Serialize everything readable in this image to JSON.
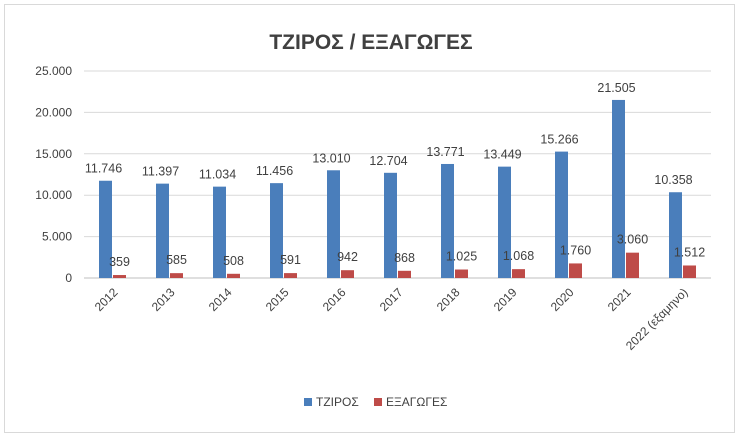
{
  "chart_data": {
    "type": "bar",
    "title": "ΤΖΙΡΟΣ / ΕΞΑΓΩΓΕΣ",
    "xlabel": "",
    "ylabel": "",
    "ylim": [
      0,
      25000
    ],
    "yticks": [
      0,
      5000,
      10000,
      15000,
      20000,
      25000
    ],
    "ytick_labels": [
      "0",
      "5.000",
      "10.000",
      "15.000",
      "20.000",
      "25.000"
    ],
    "grid": true,
    "legend_position": "bottom",
    "categories": [
      "2012",
      "2013",
      "2014",
      "2015",
      "2016",
      "2017",
      "2018",
      "2019",
      "2020",
      "2021",
      "2022 (εξαμηνο)"
    ],
    "series": [
      {
        "name": "ΤΖΙΡΟΣ",
        "color": "#4a7ebb",
        "values": [
          11746,
          11397,
          11034,
          11456,
          13010,
          12704,
          13771,
          13449,
          15266,
          21505,
          10358
        ],
        "labels": [
          "11.746",
          "11.397",
          "11.034",
          "11.456",
          "13.010",
          "12.704",
          "13.771",
          "13.449",
          "15.266",
          "21.505",
          "10.358"
        ]
      },
      {
        "name": "ΕΞΑΓΩΓΕΣ",
        "color": "#be4b48",
        "values": [
          359,
          585,
          508,
          591,
          942,
          868,
          1025,
          1068,
          1760,
          3060,
          1512
        ],
        "labels": [
          "359",
          "585",
          "508",
          "591",
          "942",
          "868",
          "1.025",
          "1.068",
          "1.760",
          "3.060",
          "1.512"
        ]
      }
    ]
  }
}
